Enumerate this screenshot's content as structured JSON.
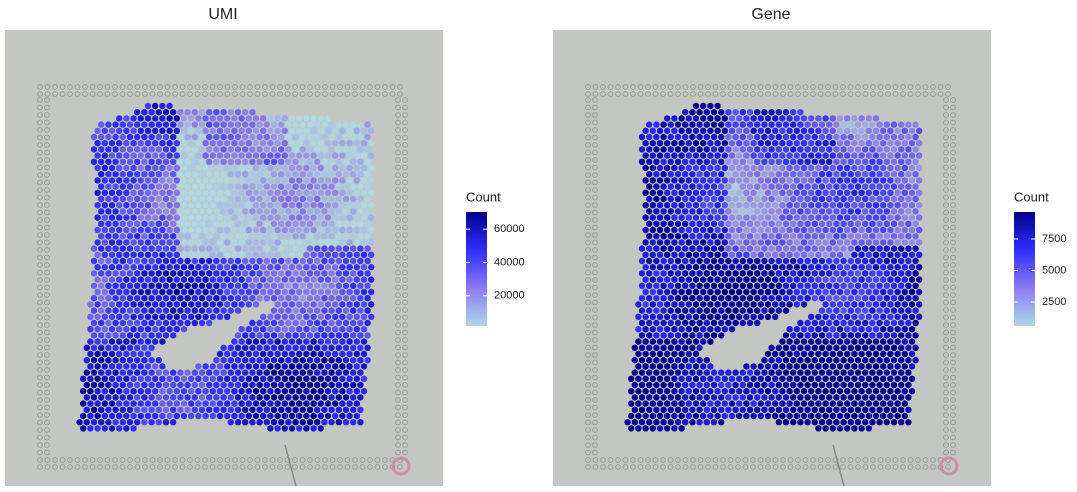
{
  "chart_data": [
    {
      "type": "spatial",
      "title": "UMI",
      "colorbar": {
        "title": "Count",
        "lim": [
          1800,
          70300
        ],
        "ticks": [
          20000,
          40000,
          60000
        ],
        "colors": [
          "#add8e6",
          "#8a7cf0",
          "#2f2fff",
          "#00008b"
        ]
      }
    },
    {
      "type": "spatial",
      "title": "Gene",
      "colorbar": {
        "title": "Count",
        "lim": [
          600,
          9640
        ],
        "ticks": [
          2500,
          5000,
          7500
        ],
        "colors": [
          "#add8e6",
          "#8a7cf0",
          "#2f2fff",
          "#00008b"
        ]
      }
    }
  ]
}
